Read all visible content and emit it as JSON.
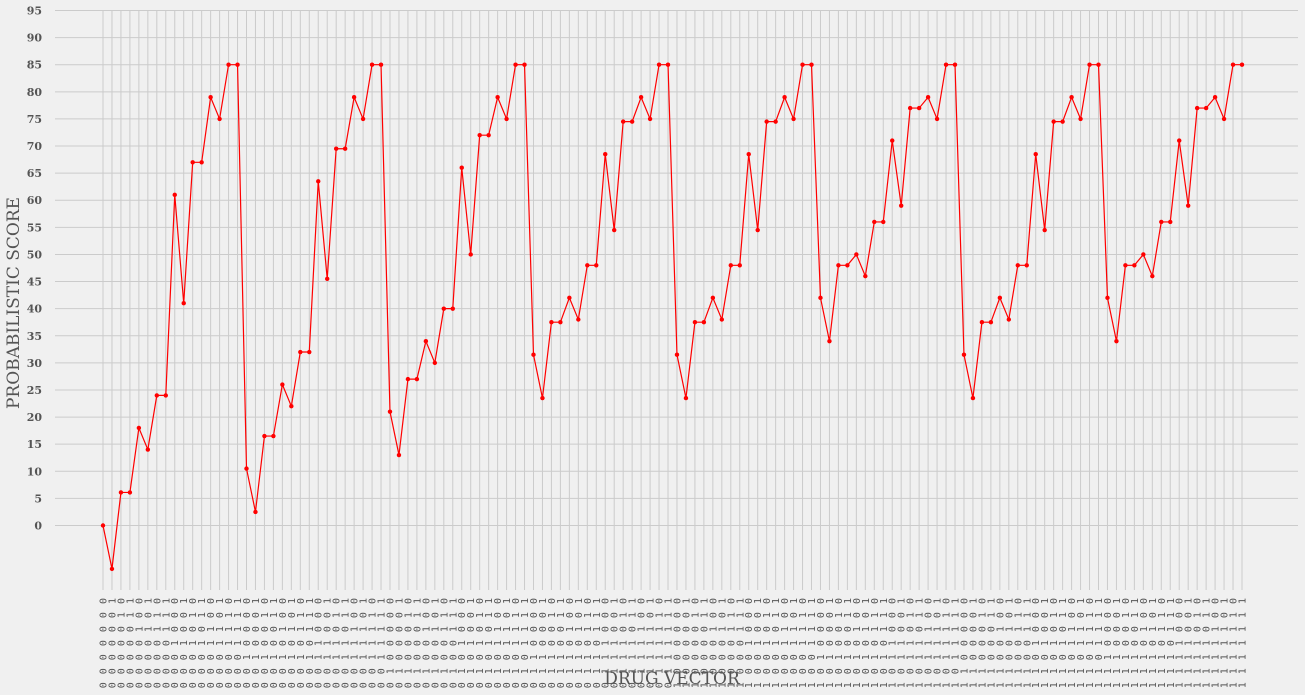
{
  "chart_data": {
    "type": "line",
    "xlabel": "DRUG VECTOR",
    "ylabel": "PROBABILISTIC SCORE",
    "ylim": [
      -10,
      95
    ],
    "yticks": [
      0,
      5,
      10,
      15,
      20,
      25,
      30,
      35,
      40,
      45,
      50,
      55,
      60,
      65,
      70,
      75,
      80,
      85,
      90,
      95
    ],
    "grid": true,
    "colors": {
      "line": "#ff0000",
      "grid": "#cbcbcb",
      "background": "#f0f0f0"
    },
    "series": [
      {
        "values": [
          0,
          -8,
          6.1,
          6.1,
          18,
          14,
          24,
          24,
          61,
          41,
          67,
          67,
          79,
          75,
          85,
          85,
          10.5,
          2.5,
          16.5,
          16.5,
          26,
          22,
          32,
          32,
          63.5,
          45.5,
          69.5,
          69.5,
          79,
          75,
          85,
          85,
          21,
          13,
          27,
          27,
          34,
          30,
          40,
          40,
          66,
          50,
          72,
          72,
          79,
          75,
          85,
          85,
          31.5,
          23.5,
          37.5,
          37.5,
          42,
          38,
          48,
          48,
          68.5,
          54.5,
          74.5,
          74.5,
          79,
          75,
          85,
          85,
          31.5,
          23.5,
          37.5,
          37.5,
          42,
          38,
          48,
          48,
          68.5,
          54.5,
          74.5,
          74.5,
          79,
          75,
          85,
          85,
          42,
          34,
          48,
          48,
          50,
          46,
          56,
          56,
          71,
          59,
          77,
          77,
          79,
          75,
          85,
          85,
          31.5,
          23.5,
          37.5,
          37.5,
          42,
          38,
          48,
          48,
          68.5,
          54.5,
          74.5,
          74.5,
          79,
          75,
          85,
          85,
          42,
          34,
          48,
          48,
          50,
          46,
          56,
          56,
          71,
          59,
          77,
          77,
          79,
          75,
          85,
          85
        ]
      }
    ]
  }
}
